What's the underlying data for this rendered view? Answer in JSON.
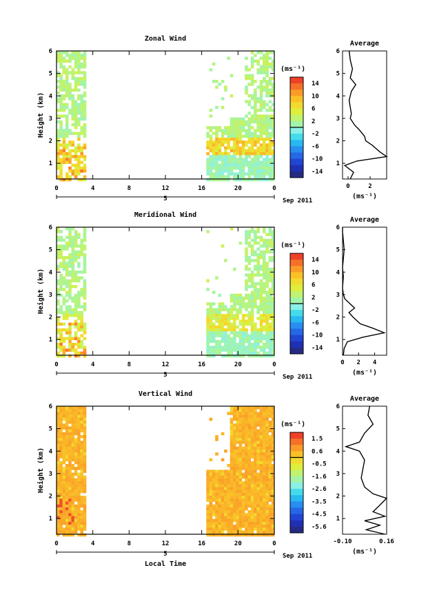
{
  "x_axis": {
    "label": "Local Time",
    "ticks": [
      "0",
      "4",
      "8",
      "12",
      "16",
      "20",
      "0"
    ],
    "day_label": "5",
    "month_label": "Sep 2011"
  },
  "avg_unit_label": "(ms⁻¹)",
  "chart_data": [
    {
      "type": "heatmap",
      "title": "Zonal Wind",
      "ylabel": "Height (km)",
      "x_range_hours": [
        0,
        24
      ],
      "ylim": [
        0.3,
        6.0
      ],
      "y_ticks": [
        "1",
        "2",
        "3",
        "4",
        "5",
        "6"
      ],
      "colorbar": {
        "unit": "(ms⁻¹)",
        "ticks": [
          "14",
          "10",
          "6",
          "2",
          "-2",
          "-6",
          "-10",
          "-14"
        ],
        "min": -16,
        "max": 16
      },
      "observed_periods_hours": [
        [
          0,
          3.2
        ],
        [
          16.5,
          24
        ]
      ],
      "average_profile": {
        "title": "Average",
        "xlim": [
          -0.5,
          3.5
        ],
        "x_ticks": [
          "0",
          "2"
        ],
        "height_km": [
          0.3,
          0.6,
          0.9,
          1.1,
          1.3,
          1.5,
          1.8,
          2.0,
          2.2,
          2.5,
          2.7,
          3.0,
          3.2,
          3.5,
          3.8,
          4.2,
          4.5,
          4.8,
          5.2,
          5.6,
          6.0
        ],
        "value": [
          0.2,
          0.5,
          -0.3,
          0.8,
          3.5,
          2.9,
          2.2,
          1.6,
          1.5,
          1.0,
          0.6,
          0.2,
          0.3,
          0.2,
          0.1,
          0.3,
          0.7,
          0.2,
          0.4,
          0.2,
          0.1
        ]
      }
    },
    {
      "type": "heatmap",
      "title": "Meridional Wind",
      "ylabel": "Height (km)",
      "x_range_hours": [
        0,
        24
      ],
      "ylim": [
        0.3,
        6.0
      ],
      "y_ticks": [
        "1",
        "2",
        "3",
        "4",
        "5",
        "6"
      ],
      "colorbar": {
        "unit": "(ms⁻¹)",
        "ticks": [
          "14",
          "10",
          "6",
          "2",
          "-2",
          "-6",
          "-10",
          "-14"
        ],
        "min": -16,
        "max": 16
      },
      "observed_periods_hours": [
        [
          0,
          3.2
        ],
        [
          16.5,
          24
        ]
      ],
      "average_profile": {
        "title": "Average",
        "xlim": [
          0,
          5.5
        ],
        "x_ticks": [
          "0",
          "2",
          "4"
        ],
        "height_km": [
          0.3,
          0.6,
          0.9,
          1.1,
          1.3,
          1.5,
          1.7,
          2.0,
          2.2,
          2.4,
          2.6,
          2.8,
          3.0,
          3.3,
          3.8,
          4.2,
          4.6,
          5.0,
          5.4,
          5.8,
          6.0
        ],
        "value": [
          0.1,
          0.2,
          0.6,
          2.5,
          5.2,
          3.8,
          2.2,
          1.3,
          0.8,
          1.5,
          0.9,
          0.3,
          0.1,
          0.0,
          0.1,
          0.0,
          0.1,
          0.2,
          0.1,
          0.0,
          0.0
        ]
      }
    },
    {
      "type": "heatmap",
      "title": "Vertical Wind",
      "ylabel": "Height (km)",
      "x_range_hours": [
        0,
        24
      ],
      "ylim": [
        0.3,
        6.0
      ],
      "y_ticks": [
        "1",
        "2",
        "3",
        "4",
        "5",
        "6"
      ],
      "colorbar": {
        "unit": "(ms⁻¹)",
        "ticks": [
          "1.5",
          "0.6",
          "-0.5",
          "-1.6",
          "-2.6",
          "-3.5",
          "-4.5",
          "-5.6"
        ],
        "min": -6.0,
        "max": 2.0
      },
      "observed_periods_hours": [
        [
          0,
          3.2
        ],
        [
          16.5,
          24
        ]
      ],
      "average_profile": {
        "title": "Average",
        "xlim": [
          -0.1,
          0.16
        ],
        "x_ticks": [
          "-0.10",
          "0.16"
        ],
        "height_km": [
          0.3,
          0.5,
          0.7,
          0.9,
          1.1,
          1.3,
          1.6,
          1.9,
          2.1,
          2.4,
          2.8,
          3.2,
          3.6,
          4.0,
          4.2,
          4.4,
          4.8,
          5.2,
          5.6,
          6.0
        ],
        "value": [
          0.15,
          0.04,
          0.12,
          0.03,
          0.15,
          0.08,
          0.12,
          0.16,
          0.08,
          0.03,
          0.01,
          0.02,
          0.03,
          0.0,
          -0.08,
          0.0,
          0.03,
          0.08,
          0.05,
          0.06
        ]
      }
    }
  ]
}
